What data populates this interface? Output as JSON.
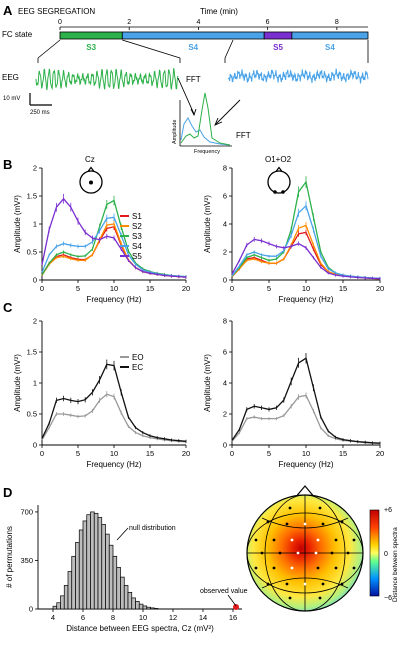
{
  "panels": {
    "A": "A",
    "B": "B",
    "C": "C",
    "D": "D"
  },
  "panel_a": {
    "title": "EEG SEGREGATION",
    "time_label": "Time (min)",
    "time_ticks": [
      "0",
      "2",
      "4",
      "6",
      "8"
    ],
    "time_range": [
      0,
      8.9
    ],
    "fc_label": "FC state",
    "states": [
      {
        "label": "S3",
        "start": 0.0,
        "end": 1.8,
        "color": "#2db14a"
      },
      {
        "label": "S4",
        "start": 1.8,
        "end": 5.9,
        "color": "#4aa3e8"
      },
      {
        "label": "S5",
        "start": 5.9,
        "end": 6.7,
        "color": "#7a2fd0"
      },
      {
        "label": "S4",
        "start": 6.7,
        "end": 8.9,
        "color": "#4aa3e8"
      }
    ],
    "eeg_label": "EEG",
    "scale_v": "10 mV",
    "scale_t": "250 ms",
    "fft_left": "FFT",
    "fft_right": "FFT",
    "inset_ylabel": "Amplitude",
    "inset_xlabel": "Frequency"
  },
  "colors": {
    "S1": "#e31a1c",
    "S2": "#ff8c00",
    "S3": "#2db14a",
    "S4": "#4aa3e8",
    "S5": "#7a2fd0",
    "EO": "#999999",
    "EC": "#111111"
  },
  "chart_data": [
    {
      "type": "line",
      "panel": "B-left",
      "annotation": "Cz",
      "xlabel": "Frequency (Hz)",
      "ylabel": "Amplitude (mV²)",
      "xlim": [
        0,
        20
      ],
      "ylim": [
        0,
        2
      ],
      "xticks": [
        "0",
        "5",
        "10",
        "15",
        "20"
      ],
      "yticks": [
        "0",
        "0.5",
        "1",
        "1.5",
        "2"
      ],
      "x": [
        1,
        2,
        3,
        4,
        5,
        6,
        7,
        8,
        9,
        10,
        11,
        12,
        13,
        14,
        15,
        16,
        17,
        18,
        19,
        20
      ],
      "series": [
        {
          "name": "S1",
          "values": [
            0.3,
            0.42,
            0.45,
            0.4,
            0.37,
            0.36,
            0.45,
            0.7,
            0.92,
            0.95,
            0.62,
            0.35,
            0.22,
            0.15,
            0.12,
            0.1,
            0.08,
            0.07,
            0.06,
            0.05
          ]
        },
        {
          "name": "S2",
          "values": [
            0.28,
            0.4,
            0.42,
            0.38,
            0.35,
            0.35,
            0.45,
            0.72,
            0.98,
            1.0,
            0.65,
            0.36,
            0.22,
            0.15,
            0.12,
            0.1,
            0.08,
            0.07,
            0.06,
            0.05
          ]
        },
        {
          "name": "S3",
          "values": [
            0.3,
            0.45,
            0.5,
            0.45,
            0.42,
            0.43,
            0.55,
            0.95,
            1.35,
            1.42,
            0.95,
            0.52,
            0.3,
            0.2,
            0.15,
            0.12,
            0.1,
            0.08,
            0.07,
            0.06
          ]
        },
        {
          "name": "S4",
          "values": [
            0.45,
            0.6,
            0.65,
            0.62,
            0.6,
            0.6,
            0.68,
            0.88,
            1.1,
            1.12,
            0.8,
            0.45,
            0.28,
            0.18,
            0.14,
            0.11,
            0.09,
            0.08,
            0.07,
            0.06
          ]
        },
        {
          "name": "S5",
          "values": [
            0.9,
            1.3,
            1.45,
            1.3,
            1.05,
            0.85,
            0.75,
            0.72,
            0.78,
            0.75,
            0.55,
            0.35,
            0.22,
            0.15,
            0.12,
            0.1,
            0.08,
            0.07,
            0.06,
            0.05
          ]
        }
      ]
    },
    {
      "type": "line",
      "panel": "B-right",
      "annotation": "O1+O2",
      "xlabel": "Frequency (Hz)",
      "ylabel": "Amplitude (mV²)",
      "xlim": [
        0,
        20
      ],
      "ylim": [
        0,
        8
      ],
      "xticks": [
        "0",
        "5",
        "10",
        "15",
        "20"
      ],
      "yticks": [
        "0",
        "2",
        "4",
        "6",
        "8"
      ],
      "x": [
        1,
        2,
        3,
        4,
        5,
        6,
        7,
        8,
        9,
        10,
        11,
        12,
        13,
        14,
        15,
        16,
        17,
        18,
        19,
        20
      ],
      "series": [
        {
          "name": "S1",
          "values": [
            0.8,
            1.5,
            1.6,
            1.4,
            1.2,
            1.2,
            1.5,
            2.4,
            3.3,
            3.4,
            2.2,
            1.1,
            0.6,
            0.4,
            0.3,
            0.25,
            0.2,
            0.15,
            0.12,
            0.1
          ]
        },
        {
          "name": "S2",
          "values": [
            0.8,
            1.4,
            1.5,
            1.3,
            1.2,
            1.2,
            1.5,
            2.5,
            3.7,
            3.9,
            2.5,
            1.2,
            0.6,
            0.4,
            0.3,
            0.25,
            0.2,
            0.15,
            0.12,
            0.1
          ]
        },
        {
          "name": "S3",
          "values": [
            0.9,
            1.6,
            1.8,
            1.6,
            1.4,
            1.5,
            2.0,
            3.6,
            6.3,
            7.0,
            4.5,
            2.0,
            0.9,
            0.5,
            0.35,
            0.28,
            0.22,
            0.18,
            0.14,
            0.12
          ]
        },
        {
          "name": "S4",
          "values": [
            1.0,
            1.8,
            2.0,
            1.8,
            1.7,
            1.7,
            2.1,
            3.2,
            4.8,
            5.3,
            3.6,
            1.7,
            0.8,
            0.5,
            0.35,
            0.28,
            0.22,
            0.18,
            0.14,
            0.12
          ]
        },
        {
          "name": "S5",
          "values": [
            1.4,
            2.5,
            2.9,
            2.8,
            2.6,
            2.4,
            2.3,
            2.4,
            2.6,
            2.3,
            1.6,
            0.9,
            0.5,
            0.35,
            0.28,
            0.22,
            0.18,
            0.14,
            0.12,
            0.1
          ]
        }
      ]
    },
    {
      "type": "line",
      "panel": "C-left",
      "xlabel": "Frequency (Hz)",
      "ylabel": "Amplitude (mV²)",
      "xlim": [
        0,
        20
      ],
      "ylim": [
        0,
        2
      ],
      "xticks": [
        "0",
        "5",
        "10",
        "15",
        "20"
      ],
      "yticks": [
        "0",
        "0.5",
        "1",
        "1.5",
        "2"
      ],
      "x": [
        1,
        2,
        3,
        4,
        5,
        6,
        7,
        8,
        9,
        10,
        11,
        12,
        13,
        14,
        15,
        16,
        17,
        18,
        19,
        20
      ],
      "series": [
        {
          "name": "EO",
          "values": [
            0.28,
            0.5,
            0.5,
            0.48,
            0.46,
            0.47,
            0.55,
            0.72,
            0.82,
            0.78,
            0.52,
            0.3,
            0.2,
            0.15,
            0.12,
            0.1,
            0.08,
            0.07,
            0.06,
            0.05
          ]
        },
        {
          "name": "EC",
          "values": [
            0.35,
            0.72,
            0.75,
            0.72,
            0.7,
            0.73,
            0.85,
            1.05,
            1.3,
            1.28,
            0.85,
            0.45,
            0.28,
            0.2,
            0.15,
            0.12,
            0.1,
            0.08,
            0.07,
            0.06
          ]
        }
      ]
    },
    {
      "type": "line",
      "panel": "C-right",
      "xlabel": "Frequency (Hz)",
      "ylabel": "Amplitude (mV²)",
      "xlim": [
        0,
        20
      ],
      "ylim": [
        0,
        8
      ],
      "xticks": [
        "0",
        "5",
        "10",
        "15",
        "20"
      ],
      "yticks": [
        "0",
        "2",
        "4",
        "6",
        "8"
      ],
      "x": [
        1,
        2,
        3,
        4,
        5,
        6,
        7,
        8,
        9,
        10,
        11,
        12,
        13,
        14,
        15,
        16,
        17,
        18,
        19,
        20
      ],
      "series": [
        {
          "name": "EO",
          "values": [
            0.8,
            1.7,
            1.8,
            1.7,
            1.7,
            1.7,
            1.9,
            2.5,
            3.1,
            3.2,
            2.2,
            1.1,
            0.6,
            0.4,
            0.3,
            0.25,
            0.2,
            0.15,
            0.12,
            0.1
          ]
        },
        {
          "name": "EC",
          "values": [
            1.0,
            2.3,
            2.5,
            2.4,
            2.3,
            2.4,
            2.9,
            4.1,
            5.3,
            5.6,
            3.7,
            1.8,
            0.9,
            0.5,
            0.35,
            0.28,
            0.22,
            0.18,
            0.14,
            0.12
          ]
        }
      ]
    },
    {
      "type": "bar",
      "panel": "D-histogram",
      "xlabel": "Distance between EEG spectra, Cz (mV²)",
      "ylabel": "# of permutations",
      "xlim": [
        3,
        16.6
      ],
      "ylim": [
        0,
        750
      ],
      "xticks": [
        "4",
        "6",
        "8",
        "10",
        "12",
        "14",
        "16"
      ],
      "yticks": [
        "0",
        "350",
        "700"
      ],
      "bin_width": 0.25,
      "bin_starts": [
        4.0,
        4.25,
        4.5,
        4.75,
        5.0,
        5.25,
        5.5,
        5.75,
        6.0,
        6.25,
        6.5,
        6.75,
        7.0,
        7.25,
        7.5,
        7.75,
        8.0,
        8.25,
        8.5,
        8.75,
        9.0,
        9.25,
        9.5,
        9.75,
        10.0,
        10.25,
        10.5,
        10.75
      ],
      "values": [
        20,
        45,
        95,
        170,
        270,
        380,
        480,
        570,
        635,
        680,
        700,
        690,
        660,
        610,
        540,
        460,
        380,
        300,
        230,
        170,
        120,
        80,
        55,
        35,
        22,
        13,
        8,
        4
      ],
      "null_label": "null distribution",
      "observed_label": "observed value",
      "observed_x": 16.2
    }
  ],
  "topomap": {
    "colorbar_label": "Distance between spectra",
    "cmax": "+6",
    "cmid": "0",
    "cmin": "−6"
  }
}
